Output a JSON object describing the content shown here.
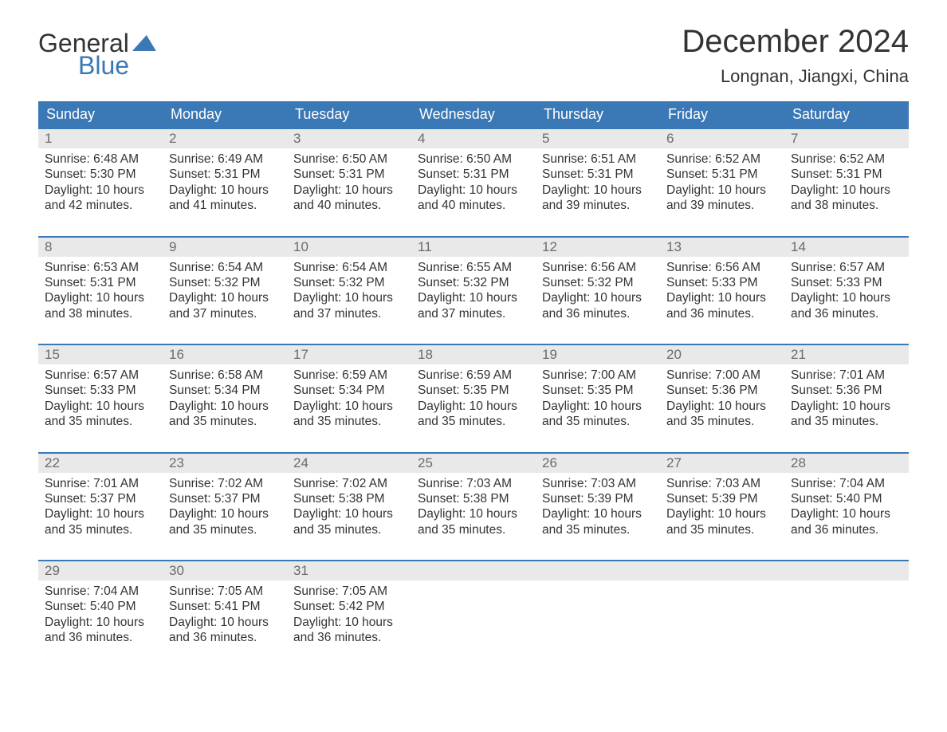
{
  "brand": {
    "word1": "General",
    "word2": "Blue",
    "accent_color": "#3b78b6"
  },
  "title": "December 2024",
  "location": "Longnan, Jiangxi, China",
  "colors": {
    "header_bg": "#3b78b6",
    "header_text": "#ffffff",
    "daynum_bg": "#e9e9e9",
    "daynum_text": "#6b6b6b",
    "body_text": "#333333",
    "row_border": "#3b78b6",
    "page_bg": "#ffffff"
  },
  "typography": {
    "title_fontsize": 40,
    "location_fontsize": 22,
    "dayheader_fontsize": 18,
    "daynum_fontsize": 17,
    "body_fontsize": 15.5,
    "logo_fontsize": 32,
    "font_family": "Arial"
  },
  "layout": {
    "columns": 7,
    "rows": 5,
    "cell_padding": 8
  },
  "day_names": [
    "Sunday",
    "Monday",
    "Tuesday",
    "Wednesday",
    "Thursday",
    "Friday",
    "Saturday"
  ],
  "weeks": [
    [
      {
        "num": "1",
        "sunrise": "Sunrise: 6:48 AM",
        "sunset": "Sunset: 5:30 PM",
        "day1": "Daylight: 10 hours",
        "day2": "and 42 minutes."
      },
      {
        "num": "2",
        "sunrise": "Sunrise: 6:49 AM",
        "sunset": "Sunset: 5:31 PM",
        "day1": "Daylight: 10 hours",
        "day2": "and 41 minutes."
      },
      {
        "num": "3",
        "sunrise": "Sunrise: 6:50 AM",
        "sunset": "Sunset: 5:31 PM",
        "day1": "Daylight: 10 hours",
        "day2": "and 40 minutes."
      },
      {
        "num": "4",
        "sunrise": "Sunrise: 6:50 AM",
        "sunset": "Sunset: 5:31 PM",
        "day1": "Daylight: 10 hours",
        "day2": "and 40 minutes."
      },
      {
        "num": "5",
        "sunrise": "Sunrise: 6:51 AM",
        "sunset": "Sunset: 5:31 PM",
        "day1": "Daylight: 10 hours",
        "day2": "and 39 minutes."
      },
      {
        "num": "6",
        "sunrise": "Sunrise: 6:52 AM",
        "sunset": "Sunset: 5:31 PM",
        "day1": "Daylight: 10 hours",
        "day2": "and 39 minutes."
      },
      {
        "num": "7",
        "sunrise": "Sunrise: 6:52 AM",
        "sunset": "Sunset: 5:31 PM",
        "day1": "Daylight: 10 hours",
        "day2": "and 38 minutes."
      }
    ],
    [
      {
        "num": "8",
        "sunrise": "Sunrise: 6:53 AM",
        "sunset": "Sunset: 5:31 PM",
        "day1": "Daylight: 10 hours",
        "day2": "and 38 minutes."
      },
      {
        "num": "9",
        "sunrise": "Sunrise: 6:54 AM",
        "sunset": "Sunset: 5:32 PM",
        "day1": "Daylight: 10 hours",
        "day2": "and 37 minutes."
      },
      {
        "num": "10",
        "sunrise": "Sunrise: 6:54 AM",
        "sunset": "Sunset: 5:32 PM",
        "day1": "Daylight: 10 hours",
        "day2": "and 37 minutes."
      },
      {
        "num": "11",
        "sunrise": "Sunrise: 6:55 AM",
        "sunset": "Sunset: 5:32 PM",
        "day1": "Daylight: 10 hours",
        "day2": "and 37 minutes."
      },
      {
        "num": "12",
        "sunrise": "Sunrise: 6:56 AM",
        "sunset": "Sunset: 5:32 PM",
        "day1": "Daylight: 10 hours",
        "day2": "and 36 minutes."
      },
      {
        "num": "13",
        "sunrise": "Sunrise: 6:56 AM",
        "sunset": "Sunset: 5:33 PM",
        "day1": "Daylight: 10 hours",
        "day2": "and 36 minutes."
      },
      {
        "num": "14",
        "sunrise": "Sunrise: 6:57 AM",
        "sunset": "Sunset: 5:33 PM",
        "day1": "Daylight: 10 hours",
        "day2": "and 36 minutes."
      }
    ],
    [
      {
        "num": "15",
        "sunrise": "Sunrise: 6:57 AM",
        "sunset": "Sunset: 5:33 PM",
        "day1": "Daylight: 10 hours",
        "day2": "and 35 minutes."
      },
      {
        "num": "16",
        "sunrise": "Sunrise: 6:58 AM",
        "sunset": "Sunset: 5:34 PM",
        "day1": "Daylight: 10 hours",
        "day2": "and 35 minutes."
      },
      {
        "num": "17",
        "sunrise": "Sunrise: 6:59 AM",
        "sunset": "Sunset: 5:34 PM",
        "day1": "Daylight: 10 hours",
        "day2": "and 35 minutes."
      },
      {
        "num": "18",
        "sunrise": "Sunrise: 6:59 AM",
        "sunset": "Sunset: 5:35 PM",
        "day1": "Daylight: 10 hours",
        "day2": "and 35 minutes."
      },
      {
        "num": "19",
        "sunrise": "Sunrise: 7:00 AM",
        "sunset": "Sunset: 5:35 PM",
        "day1": "Daylight: 10 hours",
        "day2": "and 35 minutes."
      },
      {
        "num": "20",
        "sunrise": "Sunrise: 7:00 AM",
        "sunset": "Sunset: 5:36 PM",
        "day1": "Daylight: 10 hours",
        "day2": "and 35 minutes."
      },
      {
        "num": "21",
        "sunrise": "Sunrise: 7:01 AM",
        "sunset": "Sunset: 5:36 PM",
        "day1": "Daylight: 10 hours",
        "day2": "and 35 minutes."
      }
    ],
    [
      {
        "num": "22",
        "sunrise": "Sunrise: 7:01 AM",
        "sunset": "Sunset: 5:37 PM",
        "day1": "Daylight: 10 hours",
        "day2": "and 35 minutes."
      },
      {
        "num": "23",
        "sunrise": "Sunrise: 7:02 AM",
        "sunset": "Sunset: 5:37 PM",
        "day1": "Daylight: 10 hours",
        "day2": "and 35 minutes."
      },
      {
        "num": "24",
        "sunrise": "Sunrise: 7:02 AM",
        "sunset": "Sunset: 5:38 PM",
        "day1": "Daylight: 10 hours",
        "day2": "and 35 minutes."
      },
      {
        "num": "25",
        "sunrise": "Sunrise: 7:03 AM",
        "sunset": "Sunset: 5:38 PM",
        "day1": "Daylight: 10 hours",
        "day2": "and 35 minutes."
      },
      {
        "num": "26",
        "sunrise": "Sunrise: 7:03 AM",
        "sunset": "Sunset: 5:39 PM",
        "day1": "Daylight: 10 hours",
        "day2": "and 35 minutes."
      },
      {
        "num": "27",
        "sunrise": "Sunrise: 7:03 AM",
        "sunset": "Sunset: 5:39 PM",
        "day1": "Daylight: 10 hours",
        "day2": "and 35 minutes."
      },
      {
        "num": "28",
        "sunrise": "Sunrise: 7:04 AM",
        "sunset": "Sunset: 5:40 PM",
        "day1": "Daylight: 10 hours",
        "day2": "and 36 minutes."
      }
    ],
    [
      {
        "num": "29",
        "sunrise": "Sunrise: 7:04 AM",
        "sunset": "Sunset: 5:40 PM",
        "day1": "Daylight: 10 hours",
        "day2": "and 36 minutes."
      },
      {
        "num": "30",
        "sunrise": "Sunrise: 7:05 AM",
        "sunset": "Sunset: 5:41 PM",
        "day1": "Daylight: 10 hours",
        "day2": "and 36 minutes."
      },
      {
        "num": "31",
        "sunrise": "Sunrise: 7:05 AM",
        "sunset": "Sunset: 5:42 PM",
        "day1": "Daylight: 10 hours",
        "day2": "and 36 minutes."
      },
      {
        "empty": true
      },
      {
        "empty": true
      },
      {
        "empty": true
      },
      {
        "empty": true
      }
    ]
  ]
}
